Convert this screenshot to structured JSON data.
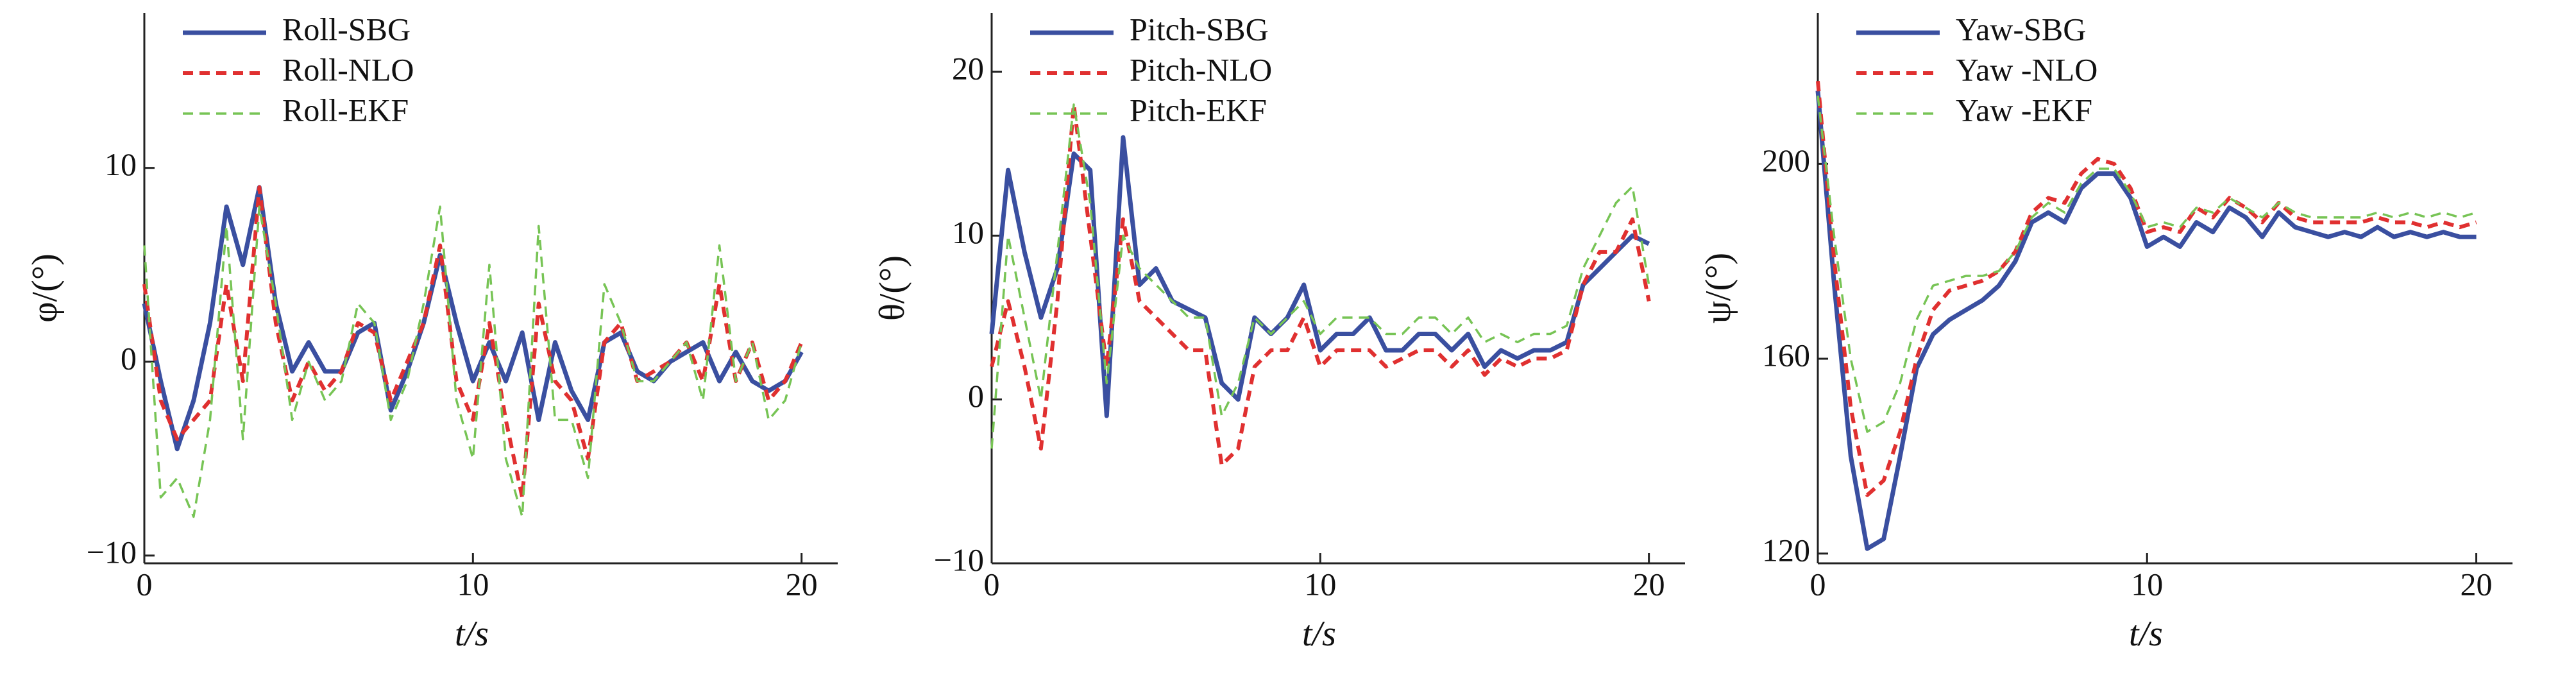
{
  "chart_data": [
    {
      "type": "line",
      "xlabel": "t/s",
      "ylabel": "φ/(°)",
      "xlim": [
        0,
        21.1
      ],
      "xticks": [
        0,
        10,
        20
      ],
      "ylim": [
        -10.4,
        18
      ],
      "yticks": [
        {
          "value": -10,
          "label": "−10"
        },
        0,
        10
      ],
      "x": [
        0,
        0.5,
        1,
        1.5,
        2,
        2.5,
        3,
        3.5,
        4,
        4.5,
        5,
        5.5,
        6,
        6.5,
        7,
        7.5,
        8,
        8.5,
        9,
        9.5,
        10,
        10.5,
        11,
        11.5,
        12,
        12.5,
        13,
        13.5,
        14,
        14.5,
        15,
        15.5,
        16,
        16.5,
        17,
        17.5,
        18,
        18.5,
        19,
        19.5,
        20
      ],
      "series": [
        {
          "name": "Roll-SBG",
          "color": "#3a4fa0",
          "linestyle": "solid",
          "values": [
            3,
            -1,
            -4.5,
            -2,
            2,
            8,
            5,
            9,
            3,
            -0.5,
            1,
            -0.5,
            -0.5,
            1.5,
            2,
            -2.5,
            -0.5,
            2,
            5.5,
            2,
            -1,
            1,
            -1,
            1.5,
            -3,
            1,
            -1.5,
            -3,
            1,
            1.5,
            -0.5,
            -1,
            0,
            0.5,
            1,
            -1,
            0.5,
            -1,
            -1.5,
            -1,
            0.5
          ]
        },
        {
          "name": "Roll-NLO",
          "color": "#e03030",
          "linestyle": "dashed",
          "values": [
            4,
            -2,
            -4,
            -3,
            -2,
            4,
            -1,
            9,
            2,
            -2,
            0,
            -1.5,
            -0.5,
            2,
            1.5,
            -2,
            0,
            2,
            6,
            -1,
            -3,
            2,
            -3,
            -7,
            3,
            -1,
            -2,
            -5,
            1,
            2,
            -1,
            -0.5,
            0,
            1,
            -1,
            4,
            -1,
            1,
            -2,
            -1,
            1
          ]
        },
        {
          "name": "Roll-EKF",
          "color": "#77c455",
          "linestyle": "dashed",
          "values": [
            6,
            -7,
            -6,
            -8,
            -3,
            7,
            -4,
            8,
            3,
            -3,
            0,
            -2,
            -1,
            3,
            2,
            -3,
            -1,
            3,
            8,
            -2,
            -5,
            5,
            -5,
            -8,
            7,
            -3,
            -3,
            -6,
            4,
            2,
            -1,
            -1,
            0,
            1,
            -2,
            6,
            -1,
            1,
            -3,
            -2,
            1
          ]
        }
      ]
    },
    {
      "type": "line",
      "xlabel": "t/s",
      "ylabel": "θ/(°)",
      "xlim": [
        0,
        21.1
      ],
      "xticks": [
        0,
        10,
        20
      ],
      "ylim": [
        -10,
        23.6
      ],
      "yticks": [
        {
          "value": -10,
          "label": "−10"
        },
        0,
        10,
        20
      ],
      "x": [
        0,
        0.5,
        1,
        1.5,
        2,
        2.5,
        3,
        3.5,
        4,
        4.5,
        5,
        5.5,
        6,
        6.5,
        7,
        7.5,
        8,
        8.5,
        9,
        9.5,
        10,
        10.5,
        11,
        11.5,
        12,
        12.5,
        13,
        13.5,
        14,
        14.5,
        15,
        15.5,
        16,
        16.5,
        17,
        17.5,
        18,
        18.5,
        19,
        19.5,
        20
      ],
      "series": [
        {
          "name": "Pitch-SBG",
          "color": "#3a4fa0",
          "linestyle": "solid",
          "values": [
            4,
            14,
            9,
            5,
            8,
            15,
            14,
            -1,
            16,
            7,
            8,
            6,
            5.5,
            5,
            1,
            0,
            5,
            4,
            5,
            7,
            3,
            4,
            4,
            5,
            3,
            3,
            4,
            4,
            3,
            4,
            2,
            3,
            2.5,
            3,
            3,
            3.5,
            7,
            8,
            9,
            10,
            9.5
          ]
        },
        {
          "name": "Pitch-NLO",
          "color": "#e03030",
          "linestyle": "dashed",
          "values": [
            2,
            6,
            2,
            -3,
            6,
            18,
            10,
            2,
            11,
            6,
            5,
            4,
            3,
            3,
            -4,
            -3,
            2,
            3,
            3,
            5,
            2,
            3,
            3,
            3,
            2,
            2.5,
            3,
            3,
            2,
            3,
            1.5,
            2.5,
            2,
            2.5,
            2.5,
            3,
            7,
            9,
            9,
            11,
            6
          ]
        },
        {
          "name": "Pitch-EKF",
          "color": "#77c455",
          "linestyle": "dashed",
          "values": [
            -3,
            10,
            5,
            0,
            9,
            18,
            12,
            1,
            10,
            8,
            7,
            6,
            5,
            5,
            -1,
            1,
            5,
            4,
            5,
            6,
            4,
            5,
            5,
            5,
            4,
            4,
            5,
            5,
            4,
            5,
            3.5,
            4,
            3.5,
            4,
            4,
            4.5,
            8,
            10,
            12,
            13,
            7
          ]
        }
      ]
    },
    {
      "type": "line",
      "xlabel": "t/s",
      "ylabel": "ψ/(°)",
      "xlim": [
        0,
        21.1
      ],
      "xticks": [
        0,
        10,
        20
      ],
      "ylim": [
        118,
        231
      ],
      "yticks": [
        120,
        160,
        200
      ],
      "x": [
        0,
        0.5,
        1,
        1.5,
        2,
        2.5,
        3,
        3.5,
        4,
        4.5,
        5,
        5.5,
        6,
        6.5,
        7,
        7.5,
        8,
        8.5,
        9,
        9.5,
        10,
        10.5,
        11,
        11.5,
        12,
        12.5,
        13,
        13.5,
        14,
        14.5,
        15,
        15.5,
        16,
        16.5,
        17,
        17.5,
        18,
        18.5,
        19,
        19.5,
        20
      ],
      "series": [
        {
          "name": "Yaw-SBG",
          "color": "#3a4fa0",
          "linestyle": "solid",
          "values": [
            215,
            175,
            140,
            121,
            123,
            140,
            158,
            165,
            168,
            170,
            172,
            175,
            180,
            188,
            190,
            188,
            195,
            198,
            198,
            193,
            183,
            185,
            183,
            188,
            186,
            191,
            189,
            185,
            190,
            187,
            186,
            185,
            186,
            185,
            187,
            185,
            186,
            185,
            186,
            185,
            185
          ]
        },
        {
          "name": "Yaw -NLO",
          "color": "#e03030",
          "linestyle": "dashed",
          "values": [
            217,
            180,
            150,
            132,
            135,
            145,
            160,
            170,
            174,
            175,
            176,
            178,
            182,
            190,
            193,
            192,
            198,
            201,
            200,
            195,
            186,
            187,
            186,
            191,
            189,
            193,
            191,
            188,
            192,
            189,
            188,
            188,
            188,
            188,
            189,
            188,
            188,
            187,
            188,
            187,
            188
          ]
        },
        {
          "name": "Yaw -EKF",
          "color": "#77c455",
          "linestyle": "dashed",
          "values": [
            214,
            185,
            160,
            145,
            147,
            155,
            168,
            175,
            176,
            177,
            177,
            178,
            182,
            189,
            192,
            190,
            196,
            199,
            199,
            194,
            187,
            188,
            187,
            191,
            190,
            193,
            191,
            189,
            192,
            190,
            189,
            189,
            189,
            189,
            190,
            189,
            190,
            189,
            190,
            189,
            190
          ]
        }
      ]
    }
  ]
}
